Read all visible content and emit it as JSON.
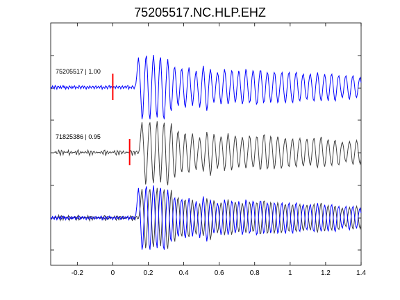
{
  "chart_data": {
    "type": "line",
    "title": "75205517.NC.HLP.EHZ",
    "xlabel": "",
    "ylabel": "",
    "xlim": [
      -0.35,
      1.4
    ],
    "x_ticks": [
      "-0.2",
      "0",
      "0.2",
      "0.4",
      "0.6",
      "0.8",
      "1",
      "1.2",
      "1.4"
    ],
    "x_tick_values": [
      -0.2,
      0,
      0.2,
      0.4,
      0.6,
      0.8,
      1.0,
      1.2,
      1.4
    ],
    "grid": false,
    "traces": [
      {
        "label": "75205517 | 1.00",
        "pick_time": 0.0,
        "color": "#0000ff",
        "pick_color": "#ff0000"
      },
      {
        "label": "71825386 | 0.95",
        "pick_time": 0.095,
        "color": "#404040",
        "pick_color": "#ff0000"
      },
      {
        "label": "",
        "overlay": true,
        "colors": [
          "#0000ff",
          "#404040"
        ]
      }
    ],
    "waveform": {
      "arrival_time": 0.13,
      "time_step": 0.005,
      "pre_arrival": [
        0.02,
        -0.03,
        0.05,
        0.01,
        -0.04,
        0.06,
        0.02,
        -0.05,
        0.04,
        0.03,
        -0.02,
        0.05,
        -0.03,
        0.02,
        0.06,
        -0.01,
        0.04,
        -0.05,
        0.03,
        0.01,
        -0.04,
        0.05,
        0.02,
        -0.03,
        0.04,
        -0.02,
        0.03,
        0.05,
        -0.04,
        0.02,
        0.01,
        -0.03,
        0.06,
        0.02,
        -0.04,
        0.03,
        0.05,
        -0.02,
        0.04,
        0.01,
        -0.05,
        0.03,
        0.02,
        -0.03,
        0.05,
        0.01,
        -0.02,
        0.04,
        0.03,
        -0.04,
        0.02,
        0.05,
        -0.03,
        0.01,
        0.04,
        -0.02,
        0.03,
        0.06,
        -0.05,
        0.02,
        0.01,
        -0.03,
        0.05,
        0.02,
        -0.04,
        0.03,
        0.06,
        -0.02,
        0.04,
        0.01,
        -0.05,
        0.03,
        0.02,
        -0.03,
        0.05,
        0.01,
        -0.02,
        0.04,
        0.03,
        -0.04,
        0.02,
        0.05,
        -0.03,
        0.01,
        0.04,
        -0.02,
        0.03,
        0.06,
        -0.05,
        0.02,
        0.01,
        -0.03,
        0.05,
        0.02,
        -0.04,
        0.03
      ],
      "coda": [
        0.1,
        0.35,
        0.7,
        0.9,
        0.6,
        0.1,
        -0.5,
        -0.95,
        -0.8,
        -0.2,
        0.4,
        0.85,
        0.95,
        0.5,
        -0.2,
        -0.8,
        -0.95,
        -0.5,
        0.2,
        0.75,
        0.98,
        0.6,
        -0.1,
        -0.7,
        -0.9,
        -0.4,
        0.3,
        0.8,
        0.9,
        0.4,
        -0.3,
        -0.85,
        -0.95,
        -0.5,
        0.1,
        0.6,
        0.85,
        0.5,
        -0.1,
        -0.6,
        -0.7,
        -0.3,
        0.2,
        0.55,
        0.6,
        0.3,
        -0.1,
        -0.45,
        -0.55,
        -0.25,
        0.15,
        0.5,
        0.55,
        0.25,
        -0.15,
        -0.5,
        -0.6,
        -0.3,
        0.1,
        0.45,
        0.6,
        0.35,
        -0.05,
        -0.4,
        -0.55,
        -0.3,
        0.05,
        0.35,
        0.5,
        0.3,
        -0.05,
        -0.4,
        -0.6,
        -0.4,
        0.0,
        0.4,
        0.65,
        0.45,
        0.0,
        -0.45,
        -0.7,
        -0.5,
        -0.05,
        0.35,
        0.55,
        0.4,
        0.05,
        -0.3,
        -0.45,
        -0.3,
        0.0,
        0.3,
        0.45,
        0.35,
        0.05,
        -0.3,
        -0.5,
        -0.35,
        0.0,
        0.35,
        0.55,
        0.4,
        0.05,
        -0.3,
        -0.5,
        -0.4,
        -0.05,
        0.3,
        0.5,
        0.45,
        0.1,
        -0.25,
        -0.45,
        -0.35,
        0.0,
        0.3,
        0.5,
        0.4,
        0.05,
        -0.3,
        -0.5,
        -0.4,
        -0.05,
        0.3,
        0.55,
        0.45,
        0.1,
        -0.25,
        -0.45,
        -0.4,
        -0.05,
        0.3,
        0.5,
        0.45,
        0.1,
        -0.25,
        -0.5,
        -0.45,
        -0.1,
        0.25,
        0.5,
        0.5,
        0.2,
        -0.2,
        -0.45,
        -0.4,
        -0.1,
        0.25,
        0.45,
        0.4,
        0.1,
        -0.25,
        -0.45,
        -0.35,
        -0.05,
        0.3,
        0.45,
        0.4,
        0.1,
        -0.25,
        -0.45,
        -0.4,
        -0.1,
        0.2,
        0.4,
        0.45,
        0.2,
        -0.15,
        -0.4,
        -0.45,
        -0.2,
        0.15,
        0.4,
        0.45,
        0.2,
        -0.15,
        -0.4,
        -0.45,
        -0.2,
        0.15,
        0.4,
        0.45,
        0.25,
        -0.1,
        -0.35,
        -0.4,
        -0.2,
        0.15,
        0.35,
        0.4,
        0.2,
        -0.1,
        -0.3,
        -0.35,
        -0.15,
        0.15,
        0.35,
        0.4,
        0.2,
        -0.1,
        -0.35,
        -0.4,
        -0.2,
        0.1,
        0.35,
        0.45,
        0.25,
        -0.05,
        -0.3,
        -0.4,
        -0.25,
        0.05,
        0.3,
        0.4,
        0.25,
        -0.05,
        -0.3,
        -0.4,
        -0.2,
        0.1,
        0.35,
        0.4,
        0.2,
        -0.1,
        -0.35,
        -0.4,
        -0.2,
        0.1,
        0.3,
        0.35,
        0.2,
        -0.05,
        -0.25,
        -0.3,
        -0.15,
        0.1,
        0.3,
        0.35,
        0.2,
        -0.05,
        -0.3,
        -0.35,
        -0.15,
        0.1,
        0.3,
        0.35,
        0.2,
        -0.05,
        -0.25,
        -0.3,
        -0.15,
        0.1,
        0.25,
        0.3,
        0.15,
        -0.05,
        -0.25,
        -0.3,
        -0.15,
        0.1,
        0.25,
        0.3,
        0.15,
        -0.05,
        -0.25,
        -0.25,
        -0.1,
        0.1,
        0.25,
        0.3,
        0.15,
        -0.05,
        -0.2,
        -0.25,
        -0.1,
        0.1,
        0.2,
        0.25,
        0.15,
        -0.05,
        -0.2,
        -0.25,
        -0.1,
        0.05,
        0.2,
        0.25,
        0.15,
        0.0,
        -0.15,
        -0.2,
        -0.1,
        0.05,
        0.15,
        0.2,
        0.1,
        0.0,
        -0.15,
        -0.2,
        -0.1,
        0.05,
        0.15
      ]
    }
  }
}
